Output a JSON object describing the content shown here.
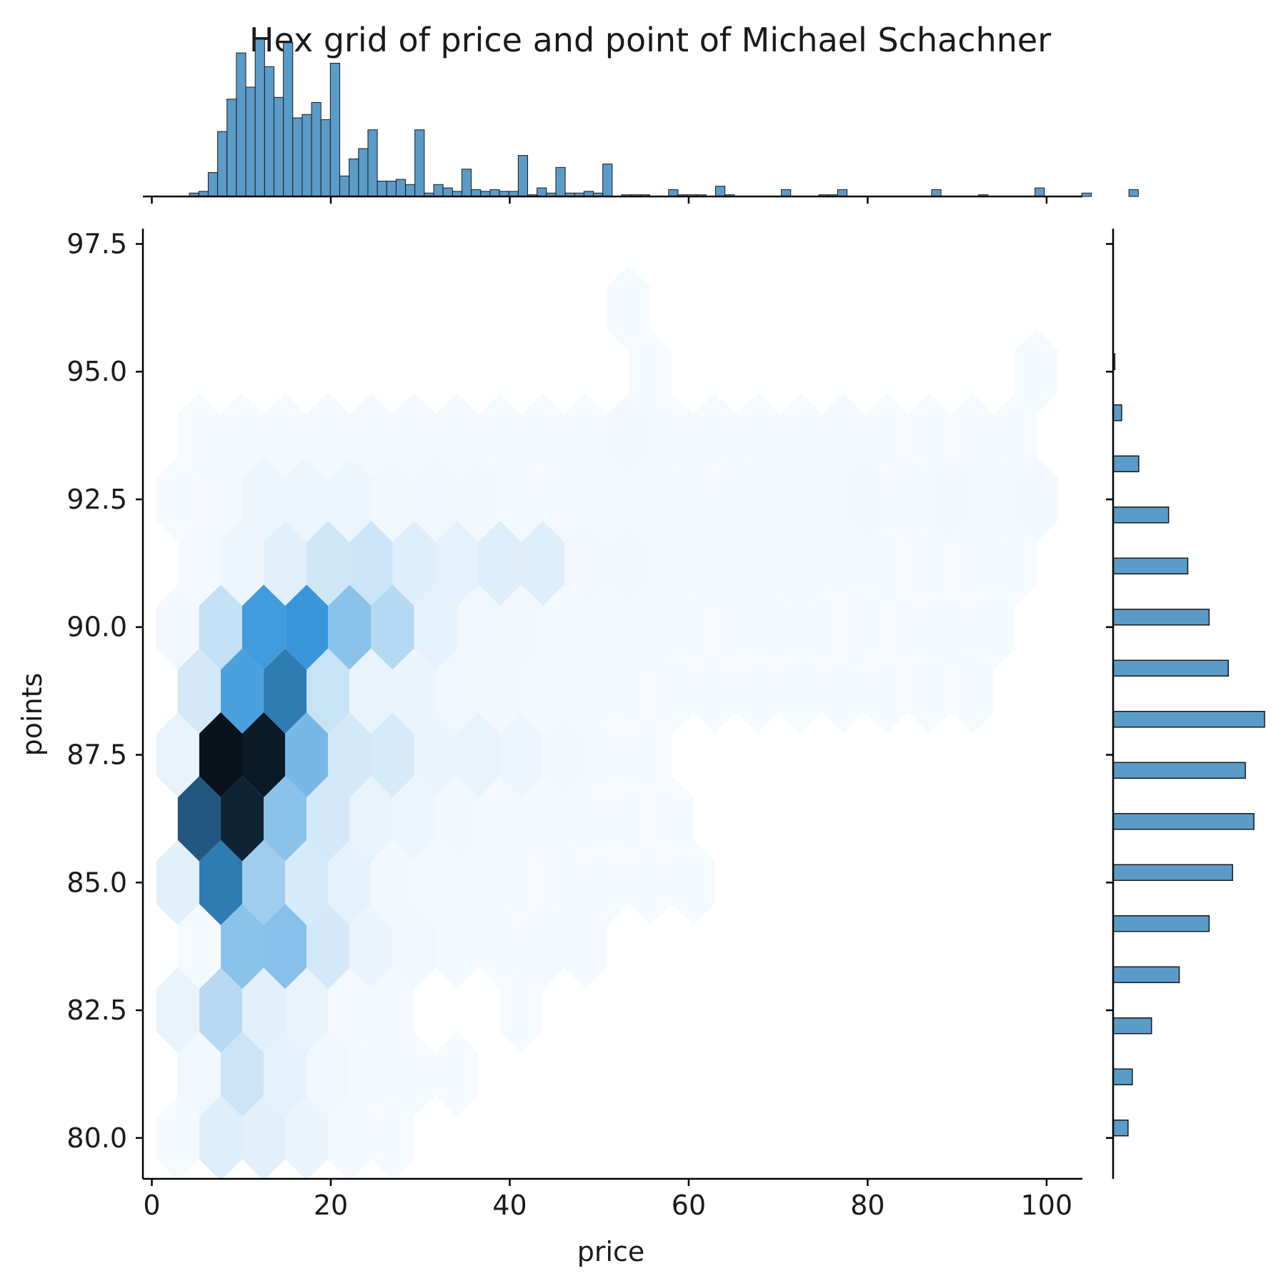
{
  "chart_data": {
    "type": "heatmap",
    "subtype": "hexbin-jointplot",
    "title": "Hex grid of price and point of Michael Schachner",
    "xlabel": "price",
    "ylabel": "points",
    "xlim": [
      -1,
      104
    ],
    "ylim": [
      79.2,
      97.8
    ],
    "x_ticks": [
      0,
      20,
      40,
      60,
      80,
      100
    ],
    "x_tick_labels": [
      "0",
      "20",
      "40",
      "60",
      "80",
      "100"
    ],
    "y_ticks": [
      80,
      82.5,
      85,
      87.5,
      90,
      92.5,
      95,
      97.5
    ],
    "y_tick_labels": [
      "80.0",
      "82.5",
      "85.0",
      "87.5",
      "90.0",
      "92.5",
      "95.0",
      "97.5"
    ],
    "grid": false,
    "colors": {
      "bar": "#5b9bc8",
      "bar_edge": "#1a1a1a",
      "hex_scale_low": "#f7fbff",
      "hex_scale_mid": "#3a97db",
      "hex_scale_high": "#000000"
    },
    "hexbin": {
      "gridsize_x": 20,
      "x_step": 4.8,
      "y_row_step": 1.25,
      "x_start": 2.9,
      "y_start": 80.0,
      "rows": [
        {
          "y": 80.0,
          "counts": [
            1,
            14,
            12,
            6,
            2,
            1
          ]
        },
        {
          "y": 81.25,
          "counts": [
            4,
            24,
            10,
            4,
            1,
            1,
            1
          ]
        },
        {
          "y": 82.5,
          "counts": [
            8,
            34,
            12,
            8,
            2,
            2,
            0,
            0,
            1
          ]
        },
        {
          "y": 83.75,
          "counts": [
            1,
            60,
            62,
            20,
            6,
            4,
            2,
            1,
            2,
            2
          ]
        },
        {
          "y": 85.0,
          "counts": [
            12,
            120,
            48,
            18,
            10,
            3,
            2,
            2,
            1,
            1,
            1,
            1,
            1
          ]
        },
        {
          "y": 86.25,
          "counts": [
            140,
            170,
            60,
            20,
            8,
            5,
            3,
            2,
            2,
            1,
            1,
            1
          ]
        },
        {
          "y": 87.5,
          "counts": [
            8,
            180,
            175,
            70,
            20,
            18,
            6,
            8,
            5,
            3,
            1,
            1
          ]
        },
        {
          "y": 88.75,
          "counts": [
            20,
            95,
            120,
            26,
            8,
            6,
            4,
            3,
            2,
            2,
            1,
            1,
            1,
            1,
            1,
            1,
            1,
            1,
            1
          ]
        },
        {
          "y": 90.0,
          "counts": [
            3,
            28,
            100,
            105,
            60,
            36,
            10,
            4,
            3,
            2,
            2,
            2,
            1,
            1,
            1,
            1,
            1,
            1,
            1,
            1
          ]
        },
        {
          "y": 91.25,
          "counts": [
            2,
            5,
            12,
            22,
            24,
            14,
            10,
            14,
            14,
            3,
            3,
            2,
            2,
            2,
            2,
            1,
            1,
            1,
            1,
            1
          ]
        },
        {
          "y": 92.5,
          "counts": [
            1,
            2,
            5,
            5,
            5,
            3,
            4,
            3,
            2,
            2,
            2,
            2,
            2,
            2,
            2,
            2,
            3,
            2,
            3,
            2,
            3
          ]
        },
        {
          "y": 93.75,
          "counts": [
            1,
            1,
            1,
            2,
            2,
            2,
            2,
            1,
            1,
            1,
            3,
            1,
            1,
            1,
            1,
            2,
            1,
            1,
            1,
            1
          ]
        },
        {
          "y": 95.0,
          "counts": [
            0,
            0,
            0,
            0,
            0,
            0,
            0,
            0,
            0,
            0,
            0,
            1,
            0,
            0,
            0,
            0,
            0,
            0,
            0,
            0,
            1
          ]
        },
        {
          "y": 96.25,
          "counts": [
            0,
            0,
            0,
            0,
            0,
            0,
            0,
            0,
            0,
            0,
            1
          ]
        }
      ],
      "vmax": 190
    },
    "marginal_x": {
      "type": "histogram",
      "bin_width": 1.05,
      "bins_start": 4.2,
      "counts": [
        2,
        3,
        14,
        38,
        57,
        84,
        64,
        92,
        76,
        58,
        90,
        46,
        48,
        55,
        45,
        78,
        12,
        22,
        28,
        39,
        9,
        9,
        10,
        7,
        39,
        2,
        7,
        5,
        3,
        16,
        4,
        3,
        4,
        3,
        3,
        24,
        1,
        5,
        2,
        17,
        2,
        2,
        3,
        2,
        19,
        0,
        1,
        1,
        1,
        0,
        0,
        4,
        1,
        1,
        1,
        0,
        6,
        1,
        0,
        0,
        0,
        0,
        0,
        4,
        0,
        0,
        0,
        1,
        1,
        4,
        0,
        0,
        0,
        0,
        0,
        0,
        0,
        0,
        0,
        4,
        0,
        0,
        0,
        0,
        1,
        0,
        0,
        0,
        0,
        0,
        5,
        0,
        0,
        0,
        0,
        2,
        0,
        0,
        0,
        0,
        4
      ]
    },
    "marginal_y": {
      "type": "histogram",
      "bin_height": 1.0,
      "bins_start": 79.5,
      "counts": [
        70,
        90,
        180,
        310,
        450,
        560,
        660,
        620,
        710,
        540,
        450,
        350,
        260,
        120,
        40,
        8,
        0,
        0
      ]
    }
  }
}
